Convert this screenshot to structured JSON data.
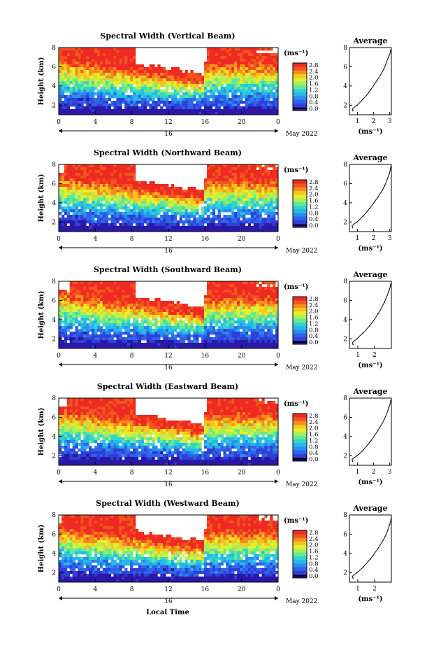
{
  "figure": {
    "day_label": "16",
    "month_label": "May 2022",
    "shared_xlabel": "Local Time",
    "colorbar_unit": "(ms⁻¹)",
    "avg_title": "Average",
    "avg_xlabel": "(ms⁻¹)",
    "colormap": [
      "#2a18a8",
      "#2f3fd8",
      "#2e64e8",
      "#2a8ef0",
      "#25b8ec",
      "#30d6c8",
      "#66e890",
      "#a9ef5a",
      "#e4ef2c",
      "#f6c51e",
      "#f68e1c",
      "#f2551e",
      "#ee2a22"
    ]
  },
  "chart_data": [
    {
      "type": "heatmap",
      "title": "Spectral Width (Vertical Beam)",
      "ylabel": "Height (km)",
      "xlim": [
        0,
        24
      ],
      "ylim": [
        1,
        8
      ],
      "x_ticks": [
        "0",
        "4",
        "8",
        "12",
        "16",
        "20",
        "0"
      ],
      "y_ticks": [
        "2",
        "4",
        "6",
        "8"
      ],
      "colorbar": {
        "range": [
          0,
          2.8
        ],
        "ticks": [
          "2.8",
          "2.4",
          "2.0",
          "1.6",
          "1.2",
          "0.8",
          "0.4",
          "0.0"
        ]
      },
      "average_profile": {
        "xlim": [
          0.5,
          3.1
        ],
        "x_ticks": [
          "1",
          "2",
          "3"
        ],
        "y_ticks": [
          "2",
          "4",
          "6",
          "8"
        ],
        "height_km": [
          1.4,
          1.6,
          1.8,
          2.0,
          2.2,
          2.4,
          2.6,
          2.8,
          3.0,
          3.4,
          3.8,
          4.2,
          4.6,
          5.0,
          5.4,
          5.8,
          6.2,
          6.6,
          7.0,
          7.4,
          7.8
        ],
        "width_ms": [
          0.72,
          0.68,
          0.82,
          0.98,
          1.1,
          1.22,
          1.32,
          1.44,
          1.55,
          1.73,
          1.91,
          2.06,
          2.22,
          2.37,
          2.52,
          2.64,
          2.74,
          2.82,
          2.92,
          3.02,
          3.05
        ]
      }
    },
    {
      "type": "heatmap",
      "title": "Spectral Width (Northward Beam)",
      "ylabel": "Height (km)",
      "xlim": [
        0,
        24
      ],
      "ylim": [
        1,
        8
      ],
      "x_ticks": [
        "0",
        "4",
        "8",
        "12",
        "16",
        "20",
        "0"
      ],
      "y_ticks": [
        "2",
        "4",
        "6",
        "8"
      ],
      "colorbar": {
        "range": [
          0,
          2.8
        ],
        "ticks": [
          "2.8",
          "2.4",
          "2.0",
          "1.6",
          "1.2",
          "0.8",
          "0.4",
          "0.0"
        ]
      },
      "average_profile": {
        "xlim": [
          0.5,
          3.1
        ],
        "x_ticks": [
          "1",
          "2",
          "3"
        ],
        "y_ticks": [
          "2",
          "4",
          "6",
          "8"
        ],
        "height_km": [
          1.4,
          1.6,
          1.8,
          2.0,
          2.2,
          2.4,
          2.6,
          2.8,
          3.0,
          3.4,
          3.8,
          4.2,
          4.6,
          5.0,
          5.4,
          5.8,
          6.2,
          6.6,
          7.0,
          7.4,
          7.8
        ],
        "width_ms": [
          0.7,
          0.66,
          0.8,
          0.97,
          1.1,
          1.22,
          1.33,
          1.45,
          1.55,
          1.74,
          1.93,
          2.1,
          2.27,
          2.42,
          2.57,
          2.69,
          2.79,
          2.88,
          2.96,
          3.03,
          3.06
        ]
      }
    },
    {
      "type": "heatmap",
      "title": "Spectral Width (Southward Beam)",
      "ylabel": "Height (km)",
      "xlim": [
        0,
        24
      ],
      "ylim": [
        1,
        8
      ],
      "x_ticks": [
        "0",
        "4",
        "8",
        "12",
        "16",
        "20",
        "0"
      ],
      "y_ticks": [
        "2",
        "4",
        "6",
        "8"
      ],
      "colorbar": {
        "range": [
          0,
          2.8
        ],
        "ticks": [
          "2.8",
          "2.4",
          "2.0",
          "1.6",
          "1.2",
          "0.8",
          "0.4",
          "0.0"
        ]
      },
      "average_profile": {
        "xlim": [
          0.5,
          3.0
        ],
        "x_ticks": [
          "1",
          "2"
        ],
        "y_ticks": [
          "2",
          "4",
          "6",
          "8"
        ],
        "height_km": [
          1.4,
          1.6,
          1.8,
          2.0,
          2.2,
          2.4,
          2.6,
          2.8,
          3.0,
          3.4,
          3.8,
          4.2,
          4.6,
          5.0,
          5.4,
          5.8,
          6.2,
          6.6,
          7.0,
          7.4,
          7.8
        ],
        "width_ms": [
          0.72,
          0.68,
          0.8,
          0.95,
          1.06,
          1.18,
          1.3,
          1.42,
          1.52,
          1.72,
          1.9,
          2.06,
          2.2,
          2.34,
          2.46,
          2.58,
          2.68,
          2.77,
          2.86,
          2.93,
          2.97
        ]
      }
    },
    {
      "type": "heatmap",
      "title": "Spectral Width (Eastward Beam)",
      "ylabel": "Height (km)",
      "xlim": [
        0,
        24
      ],
      "ylim": [
        1,
        8
      ],
      "x_ticks": [
        "0",
        "4",
        "8",
        "12",
        "16",
        "20",
        "0"
      ],
      "y_ticks": [
        "2",
        "4",
        "6",
        "8"
      ],
      "colorbar": {
        "range": [
          0,
          2.8
        ],
        "ticks": [
          "2.8",
          "2.4",
          "2.0",
          "1.6",
          "1.2",
          "0.8",
          "0.4",
          "0.0"
        ]
      },
      "average_profile": {
        "xlim": [
          0.5,
          3.1
        ],
        "x_ticks": [
          "1",
          "2",
          "3"
        ],
        "y_ticks": [
          "2",
          "4",
          "6",
          "8"
        ],
        "height_km": [
          1.4,
          1.6,
          1.8,
          2.0,
          2.2,
          2.4,
          2.6,
          2.8,
          3.0,
          3.4,
          3.8,
          4.2,
          4.6,
          5.0,
          5.4,
          5.8,
          6.2,
          6.6,
          7.0,
          7.4,
          7.8
        ],
        "width_ms": [
          0.7,
          0.66,
          0.8,
          0.97,
          1.12,
          1.25,
          1.36,
          1.46,
          1.56,
          1.76,
          1.94,
          2.1,
          2.26,
          2.4,
          2.54,
          2.66,
          2.77,
          2.86,
          2.94,
          3.02,
          3.06
        ]
      }
    },
    {
      "type": "heatmap",
      "title": "Spectral Width (Westward Beam)",
      "ylabel": "Height (km)",
      "xlim": [
        0,
        24
      ],
      "ylim": [
        1,
        8
      ],
      "x_ticks": [
        "0",
        "4",
        "8",
        "12",
        "16",
        "20",
        "0"
      ],
      "y_ticks": [
        "2",
        "4",
        "6",
        "8"
      ],
      "colorbar": {
        "range": [
          0,
          2.8
        ],
        "ticks": [
          "2.8",
          "2.4",
          "2.0",
          "1.6",
          "1.2",
          "0.8",
          "0.4",
          "0.0"
        ]
      },
      "average_profile": {
        "xlim": [
          0.5,
          3.0
        ],
        "x_ticks": [
          "1",
          "2"
        ],
        "y_ticks": [
          "2",
          "4",
          "6",
          "8"
        ],
        "height_km": [
          1.4,
          1.6,
          1.8,
          2.0,
          2.2,
          2.4,
          2.6,
          2.8,
          3.0,
          3.4,
          3.8,
          4.2,
          4.6,
          5.0,
          5.4,
          5.8,
          6.2,
          6.6,
          7.0,
          7.4,
          7.8
        ],
        "width_ms": [
          0.72,
          0.67,
          0.8,
          0.96,
          1.1,
          1.22,
          1.33,
          1.44,
          1.54,
          1.74,
          1.92,
          2.08,
          2.24,
          2.38,
          2.52,
          2.64,
          2.74,
          2.82,
          2.9,
          2.96,
          3.0
        ]
      }
    }
  ]
}
